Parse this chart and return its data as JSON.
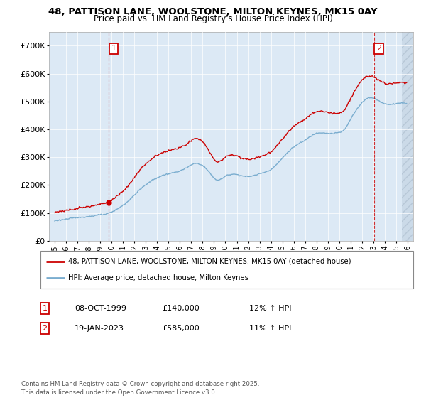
{
  "title1": "48, PATTISON LANE, WOOLSTONE, MILTON KEYNES, MK15 0AY",
  "title2": "Price paid vs. HM Land Registry's House Price Index (HPI)",
  "legend_line1": "48, PATTISON LANE, WOOLSTONE, MILTON KEYNES, MK15 0AY (detached house)",
  "legend_line2": "HPI: Average price, detached house, Milton Keynes",
  "annotation1_label": "1",
  "annotation1_date": "08-OCT-1999",
  "annotation1_price": 140000,
  "annotation1_hpi": "12% ↑ HPI",
  "annotation1_year": 1999.77,
  "annotation2_label": "2",
  "annotation2_date": "19-JAN-2023",
  "annotation2_price": 585000,
  "annotation2_hpi": "11% ↑ HPI",
  "annotation2_year": 2023.05,
  "sale1_dot_price": 140000,
  "sale2_dot_price": 585000,
  "red_color": "#cc0000",
  "blue_color": "#7aadcf",
  "background_color": "#dce9f5",
  "hatch_color": "#c0d0e0",
  "footer_text": "Contains HM Land Registry data © Crown copyright and database right 2025.\nThis data is licensed under the Open Government Licence v3.0.",
  "ylim": [
    0,
    750000
  ],
  "yticks": [
    0,
    100000,
    200000,
    300000,
    400000,
    500000,
    600000,
    700000
  ],
  "ytick_labels": [
    "£0",
    "£100K",
    "£200K",
    "£300K",
    "£400K",
    "£500K",
    "£600K",
    "£700K"
  ],
  "xmin": 1994.5,
  "xmax": 2026.5,
  "xtick_start": 1995,
  "xtick_end": 2026
}
